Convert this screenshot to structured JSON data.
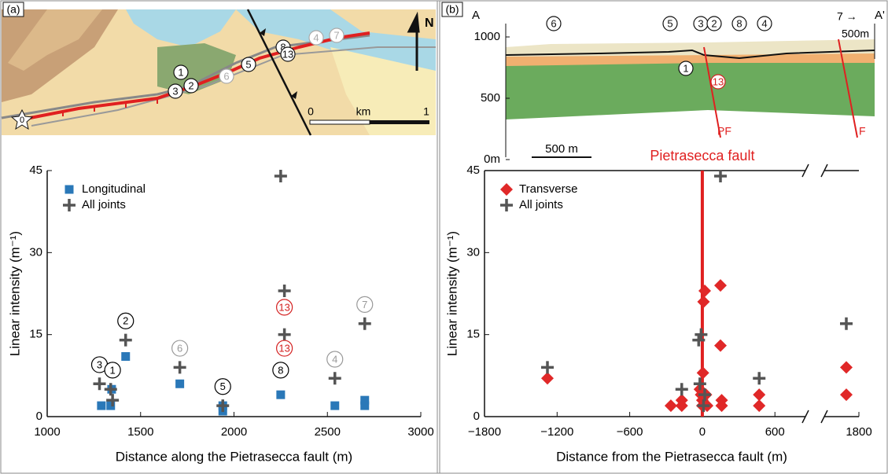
{
  "panels": [
    "(a)",
    "(b)"
  ],
  "map": {
    "sites": [
      "1",
      "2",
      "3",
      "5",
      "6",
      "8",
      "13",
      "4",
      "7"
    ],
    "start": "0",
    "scale": [
      "0",
      "km",
      "1"
    ],
    "north": "N"
  },
  "cross_section": {
    "ends": [
      "A",
      "A'"
    ],
    "yticks": [
      1000,
      500,
      {
        "value": 0,
        "label": "0m"
      }
    ],
    "sites": [
      "6",
      "5",
      "3",
      "2",
      "8",
      "4",
      "1",
      "13"
    ],
    "offsite": "7 →",
    "offsite_distance": "500m",
    "faults": [
      "PF",
      "F"
    ],
    "scale": "500 m"
  },
  "chart_data": [
    {
      "type": "scatter",
      "x_label": "Distance along the Pietrasecca fault (m)",
      "y_label": "Linear intensity (m⁻¹)",
      "xlim": [
        1000,
        3000
      ],
      "xticks": [
        1000,
        1500,
        2000,
        2500,
        3000
      ],
      "ylim": [
        0,
        45
      ],
      "yticks": [
        0,
        15,
        30,
        45
      ],
      "grid": false,
      "legend": "top-left",
      "series": [
        {
          "name": "Longitudinal",
          "color": "#2a78b8",
          "marker": "square",
          "x": [
            1290,
            1340,
            1345,
            1420,
            1710,
            1940,
            1940,
            2250,
            2540,
            2700,
            2700
          ],
          "values": [
            2,
            2,
            5,
            11,
            6,
            1,
            2,
            4,
            2,
            2,
            3
          ]
        },
        {
          "name": "All joints",
          "color": "#555555",
          "marker": "plus",
          "x": [
            1280,
            1340,
            1350,
            1420,
            1710,
            1940,
            2250,
            2270,
            2270,
            2540,
            2700
          ],
          "values": [
            6,
            5,
            3,
            14,
            9,
            2,
            44,
            23,
            15,
            7,
            17
          ]
        }
      ],
      "annotations": [
        {
          "text": "3",
          "x": 1280,
          "y": 9.5,
          "color": "#000000"
        },
        {
          "text": "1",
          "x": 1350,
          "y": 8.5,
          "color": "#000000"
        },
        {
          "text": "2",
          "x": 1420,
          "y": 17.5,
          "color": "#000000"
        },
        {
          "text": "6",
          "x": 1710,
          "y": 12.5,
          "color": "#999999"
        },
        {
          "text": "5",
          "x": 1940,
          "y": 5.5,
          "color": "#000000"
        },
        {
          "text": "8",
          "x": 2250,
          "y": 8.5,
          "color": "#000000"
        },
        {
          "text": "13",
          "x": 2270,
          "y": 20,
          "color": "#d42020"
        },
        {
          "text": "13",
          "x": 2270,
          "y": 12.5,
          "color": "#d42020"
        },
        {
          "text": "4",
          "x": 2540,
          "y": 10.5,
          "color": "#999999"
        },
        {
          "text": "7",
          "x": 2700,
          "y": 20.5,
          "color": "#999999"
        }
      ]
    },
    {
      "type": "scatter",
      "x_label": "Distance from the Pietrasecca fault (m)",
      "y_label": "Linear intensity (m⁻¹)",
      "xlim": [
        -1800,
        1800
      ],
      "xbreak": [
        800,
        1500
      ],
      "xticks": [
        {
          "value": -1800,
          "label": "−1800"
        },
        {
          "value": -1200,
          "label": "−1200"
        },
        {
          "value": -600,
          "label": "−600"
        },
        0,
        600,
        1800
      ],
      "ylim": [
        0,
        45
      ],
      "yticks": [
        0,
        15,
        30,
        45
      ],
      "grid": false,
      "legend": "top-left",
      "fault_line": {
        "x": 0,
        "color": "#e02020",
        "label": "Pietrasecca fault"
      },
      "series": [
        {
          "name": "Transverse",
          "color": "#e02828",
          "marker": "diamond",
          "x": [
            -1280,
            -260,
            -170,
            -170,
            -20,
            -10,
            0,
            0,
            5,
            10,
            20,
            30,
            40,
            150,
            150,
            160,
            160,
            470,
            470,
            1680,
            1680
          ],
          "values": [
            7,
            2,
            2,
            3,
            5,
            4,
            2,
            3,
            8,
            21,
            23,
            4,
            2,
            24,
            13,
            3,
            2,
            4,
            2,
            9,
            4
          ]
        },
        {
          "name": "All joints",
          "color": "#555555",
          "marker": "plus",
          "x": [
            -1280,
            -170,
            -20,
            -30,
            -10,
            10,
            20,
            150,
            470,
            1680
          ],
          "values": [
            9,
            5,
            6,
            14,
            15,
            2,
            4,
            44,
            7,
            17
          ]
        }
      ]
    }
  ]
}
